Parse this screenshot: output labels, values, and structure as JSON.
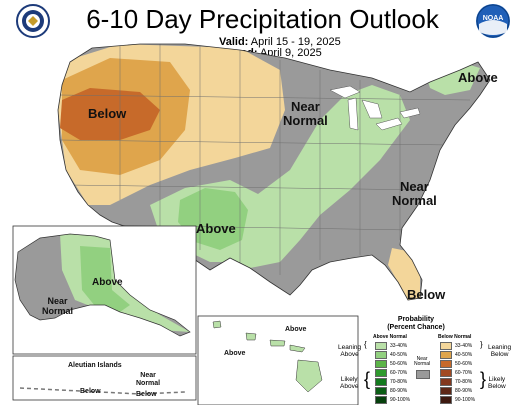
{
  "header": {
    "title": "6-10 Day Precipitation Outlook",
    "valid_label": "Valid:",
    "valid_value": "April 15 - 19, 2025",
    "issued_label": "Issued:",
    "issued_value": "April 9, 2025"
  },
  "logos": {
    "left": {
      "icon": "department-of-commerce-seal",
      "color": "#1d3b7a"
    },
    "right": {
      "icon": "noaa-logo",
      "text": "NOAA",
      "color": "#1f5fb8"
    }
  },
  "map_labels": {
    "below_west": "Below",
    "near_normal_north": "Near\nNormal",
    "above_northeast": "Above",
    "near_normal_east": "Near\nNormal",
    "above_south": "Above",
    "below_florida": "Below",
    "alaska_near_normal": "Near\nNormal",
    "alaska_above": "Above",
    "hawaii_above_1": "Above",
    "hawaii_above_2": "Above",
    "aleutian_title": "Aleutian Islands",
    "aleutian_near_normal": "Near\nNormal",
    "aleutian_below_1": "Below",
    "aleutian_below_2": "Below"
  },
  "legend": {
    "title": "Probability\n(Percent Chance)",
    "above_head": "Above Normal",
    "below_head": "Below Normal",
    "near_normal": "Near\nNormal",
    "leaning_above": "Leaning\nAbove",
    "likely_above": "Likely\nAbove",
    "leaning_below": "Leaning\nBelow",
    "likely_below": "Likely\nBelow",
    "above_bins": [
      {
        "label": "33-40%",
        "color": "#b9e0a8"
      },
      {
        "label": "40-50%",
        "color": "#92d080"
      },
      {
        "label": "50-60%",
        "color": "#5cb448"
      },
      {
        "label": "60-70%",
        "color": "#2f9a2e"
      },
      {
        "label": "70-80%",
        "color": "#137a1e"
      },
      {
        "label": "80-90%",
        "color": "#0b5e15"
      },
      {
        "label": "90-100%",
        "color": "#06400c"
      }
    ],
    "below_bins": [
      {
        "label": "33-40%",
        "color": "#f3d69a"
      },
      {
        "label": "40-50%",
        "color": "#dfa54c"
      },
      {
        "label": "50-60%",
        "color": "#c76a2a"
      },
      {
        "label": "60-70%",
        "color": "#a24a22"
      },
      {
        "label": "70-80%",
        "color": "#83381e"
      },
      {
        "label": "80-90%",
        "color": "#5e2817"
      },
      {
        "label": "90-100%",
        "color": "#3e1a10"
      }
    ],
    "near_normal_color": "#9a9a9a"
  },
  "colors": {
    "near_normal": "#9a9a9a",
    "above_33": "#b9e0a8",
    "above_40": "#92d080",
    "below_33": "#f3d69a",
    "below_40": "#dfa54c",
    "below_50": "#c76a2a"
  }
}
